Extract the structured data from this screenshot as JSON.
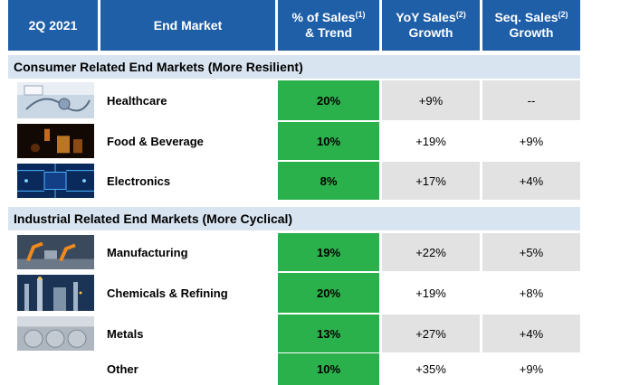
{
  "header": {
    "period": "2Q 2021",
    "end_market": "End Market",
    "pct_sales_line1": "% of Sales",
    "pct_sales_sup": "(1)",
    "pct_sales_line2": "& Trend",
    "yoy_line1": "YoY Sales",
    "yoy_sup": "(2)",
    "yoy_line2": "Growth",
    "seq_line1": "Seq. Sales",
    "seq_sup": "(2)",
    "seq_line2": "Growth"
  },
  "sections": {
    "consumer_title": "Consumer Related End Markets (More Resilient)",
    "industrial_title": "Industrial Related End Markets (More Cyclical)"
  },
  "rows": [
    {
      "image": "healthcare-image",
      "name": "Healthcare",
      "pct": "20%",
      "yoy": "+9%",
      "seq": "--"
    },
    {
      "image": "food-beverage-image",
      "name": "Food & Beverage",
      "pct": "10%",
      "yoy": "+19%",
      "seq": "+9%"
    },
    {
      "image": "electronics-image",
      "name": "Electronics",
      "pct": "8%",
      "yoy": "+17%",
      "seq": "+4%"
    },
    {
      "image": "manufacturing-image",
      "name": "Manufacturing",
      "pct": "19%",
      "yoy": "+22%",
      "seq": "+5%"
    },
    {
      "image": "chemicals-refining-image",
      "name": "Chemicals & Refining",
      "pct": "20%",
      "yoy": "+19%",
      "seq": "+8%"
    },
    {
      "image": "metals-image",
      "name": "Metals",
      "pct": "13%",
      "yoy": "+27%",
      "seq": "+4%"
    },
    {
      "image": "",
      "name": "Other",
      "pct": "10%",
      "yoy": "+35%",
      "seq": "+9%"
    }
  ],
  "colors": {
    "header_blue": "#1f5fa8",
    "section_band": "#d8e4f0",
    "pct_green": "#2bb14b",
    "row_grey": "#e2e2e2"
  }
}
